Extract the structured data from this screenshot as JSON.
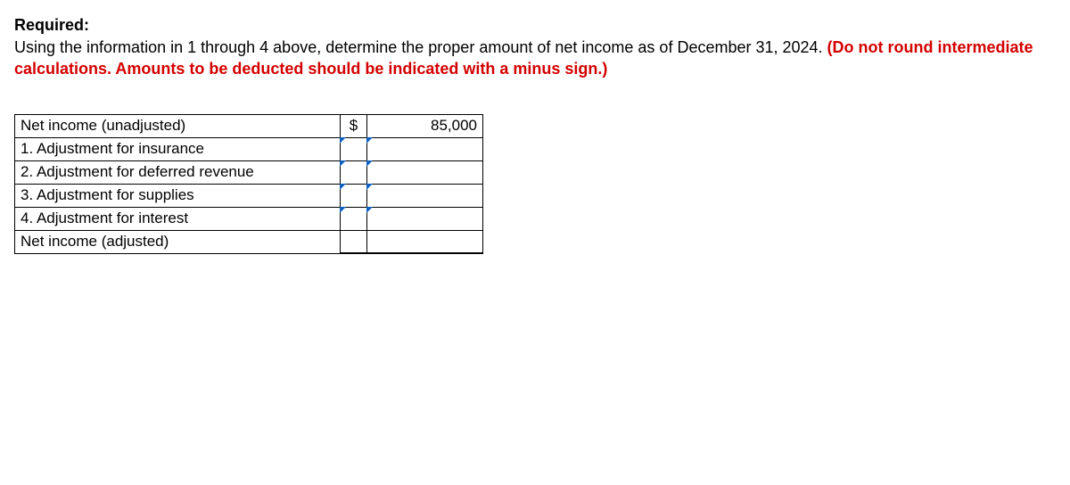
{
  "heading": "Required:",
  "body_plain": "Using the information in 1 through 4 above, determine the proper amount of net income as of December 31, 2024. ",
  "body_warn": "(Do not round intermediate calculations. Amounts to be deducted should be indicated with a minus sign.)",
  "table": {
    "rows": [
      {
        "label": "Net income (unadjusted)",
        "dollar": "$",
        "value": "85,000",
        "flag": false
      },
      {
        "label": "1. Adjustment for insurance",
        "dollar": "",
        "value": "",
        "flag": true
      },
      {
        "label": "2. Adjustment for deferred revenue",
        "dollar": "",
        "value": "",
        "flag": true
      },
      {
        "label": "3. Adjustment for supplies",
        "dollar": "",
        "value": "",
        "flag": true
      },
      {
        "label": "4. Adjustment for interest",
        "dollar": "",
        "value": "",
        "flag": true
      },
      {
        "label": "Net income (adjusted)",
        "dollar": "",
        "value": "",
        "flag": false
      }
    ]
  },
  "colors": {
    "warn": "#d40000",
    "flag": "#1060c0",
    "border": "#000000",
    "background": "#ffffff"
  }
}
